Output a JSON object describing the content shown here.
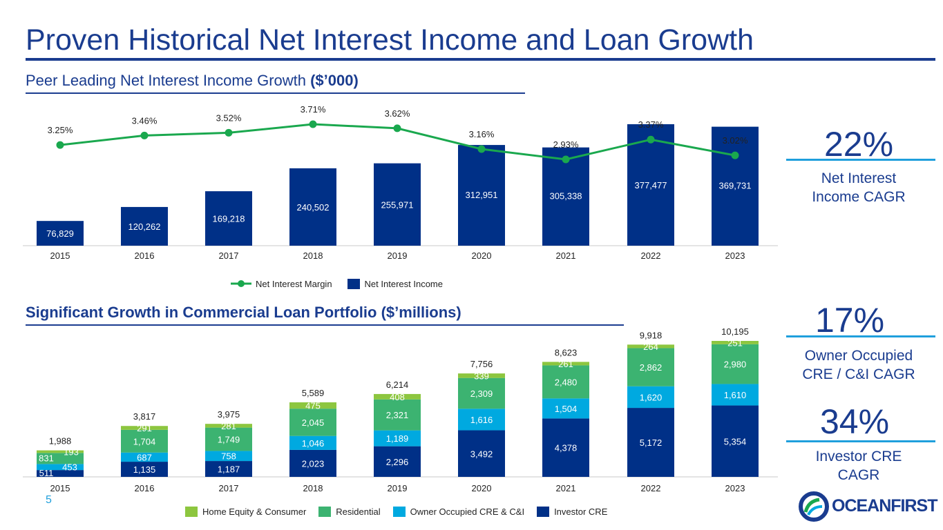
{
  "title": "Proven Historical Net Interest Income and Loan Growth",
  "subtitle1_plain": "Peer Leading Net Interest Income Growth ",
  "subtitle1_bold": "($’000)",
  "subtitle2": "Significant Growth in Commercial Loan Portfolio ($’millions)",
  "kpis": [
    {
      "value": "22%",
      "label_line1": "Net Interest",
      "label_line2": "Income CAGR"
    },
    {
      "value": "17%",
      "label_line1": "Owner Occupied",
      "label_line2": "CRE / C&I CAGR"
    },
    {
      "value": "34%",
      "label_line1": "Investor CRE",
      "label_line2": "CAGR"
    }
  ],
  "page_number": "5",
  "logo_text": "OCEANFIRST",
  "colors": {
    "navy": "#003087",
    "green_line": "#1aa84e",
    "home_equity": "#8dc63f",
    "residential": "#3cb371",
    "owner_occupied": "#00a9e0",
    "investor": "#003087"
  },
  "chart_data": [
    {
      "type": "bar",
      "title": "Peer Leading Net Interest Income Growth ($’000)",
      "categories": [
        "2015",
        "2016",
        "2017",
        "2018",
        "2019",
        "2020",
        "2021",
        "2022",
        "2023"
      ],
      "series": [
        {
          "name": "Net Interest Income",
          "kind": "bar",
          "values": [
            76829,
            120262,
            169218,
            240502,
            255971,
            312951,
            305338,
            377477,
            369731
          ],
          "labels": [
            "76,829",
            "120,262",
            "169,218",
            "240,502",
            "255,971",
            "312,951",
            "305,338",
            "377,477",
            "369,731"
          ]
        },
        {
          "name": "Net Interest Margin",
          "kind": "line",
          "values": [
            3.25,
            3.46,
            3.52,
            3.71,
            3.62,
            3.16,
            2.93,
            3.37,
            3.02
          ],
          "labels": [
            "3.25%",
            "3.46%",
            "3.52%",
            "3.71%",
            "3.62%",
            "3.16%",
            "2.93%",
            "3.37%",
            "3.02%"
          ]
        }
      ],
      "legend": [
        "Net Interest Margin",
        "Net Interest Income"
      ],
      "ylim_bar": [
        0,
        400000
      ],
      "ylim_line": [
        2.0,
        3.8
      ]
    },
    {
      "type": "bar",
      "stacked": true,
      "title": "Significant Growth in Commercial Loan Portfolio ($’millions)",
      "categories": [
        "2015",
        "2016",
        "2017",
        "2018",
        "2019",
        "2020",
        "2021",
        "2022",
        "2023"
      ],
      "series": [
        {
          "name": "Investor CRE",
          "values": [
            511,
            1135,
            1187,
            2023,
            2296,
            3492,
            4378,
            5172,
            5354
          ],
          "labels": [
            "511",
            "1,135",
            "1,187",
            "2,023",
            "2,296",
            "3,492",
            "4,378",
            "5,172",
            "5,354"
          ]
        },
        {
          "name": "Owner Occupied CRE & C&I",
          "values": [
            453,
            687,
            758,
            1046,
            1189,
            1616,
            1504,
            1620,
            1610
          ],
          "labels": [
            "453",
            "687",
            "758",
            "1,046",
            "1,189",
            "1,616",
            "1,504",
            "1,620",
            "1,610"
          ]
        },
        {
          "name": "Residential",
          "values": [
            831,
            1704,
            1749,
            2045,
            2321,
            2309,
            2480,
            2862,
            2980
          ],
          "labels": [
            "831",
            "1,704",
            "1,749",
            "2,045",
            "2,321",
            "2,309",
            "2,480",
            "2,862",
            "2,980"
          ]
        },
        {
          "name": "Home Equity & Consumer",
          "values": [
            193,
            291,
            281,
            475,
            408,
            339,
            261,
            264,
            251
          ],
          "labels": [
            "193",
            "291",
            "281",
            "475",
            "408",
            "339",
            "261",
            "264",
            "251"
          ]
        }
      ],
      "totals": [
        1988,
        3817,
        3975,
        5589,
        6214,
        7756,
        8623,
        9918,
        10195
      ],
      "total_labels": [
        "1,988",
        "3,817",
        "3,975",
        "5,589",
        "6,214",
        "7,756",
        "8,623",
        "9,918",
        "10,195"
      ],
      "legend": [
        "Home Equity & Consumer",
        "Residential",
        "Owner Occupied CRE & C&I",
        "Investor CRE"
      ],
      "ylim": [
        0,
        10500
      ]
    }
  ]
}
